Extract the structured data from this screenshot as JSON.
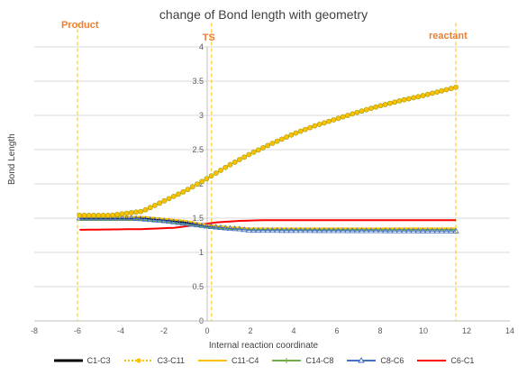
{
  "chart_data": {
    "type": "scatter",
    "title": "change of Bond length with geometry",
    "xlabel": "Internal reaction coordinate",
    "ylabel": "Bond Length",
    "xlim": [
      -8,
      14
    ],
    "ylim": [
      0,
      4
    ],
    "xticks": [
      -8,
      -6,
      -4,
      -2,
      0,
      2,
      4,
      6,
      8,
      10,
      12,
      14
    ],
    "yticks": [
      0,
      0.5,
      1,
      1.5,
      2,
      2.5,
      3,
      3.5,
      4
    ],
    "grid": "horizontal",
    "legend_position": "bottom",
    "x_range": [
      -5.9,
      11.5
    ],
    "series": [
      {
        "name": "C1-C3",
        "color": "#000000",
        "style": "line",
        "xk": [
          -5.9,
          -3,
          -1,
          0,
          1,
          2,
          11.5
        ],
        "yk": [
          1.5,
          1.5,
          1.44,
          1.38,
          1.35,
          1.34,
          1.34
        ]
      },
      {
        "name": "C3-C11",
        "color": "#FFC000",
        "style": "dotted-marker",
        "xk": [
          -5.9,
          -4.5,
          -3,
          -2,
          -1,
          0,
          1,
          2,
          3,
          4,
          5,
          6,
          7,
          8,
          9,
          10,
          11,
          11.5
        ],
        "yk": [
          1.54,
          1.54,
          1.6,
          1.75,
          1.9,
          2.08,
          2.27,
          2.44,
          2.59,
          2.73,
          2.85,
          2.95,
          3.05,
          3.14,
          3.22,
          3.29,
          3.37,
          3.41
        ]
      },
      {
        "name": "C11-C4",
        "color": "#FFC000",
        "style": "line",
        "xk": [
          -5.9,
          -3,
          -1,
          0,
          1,
          2,
          11.5
        ],
        "yk": [
          1.52,
          1.52,
          1.46,
          1.4,
          1.37,
          1.35,
          1.35
        ]
      },
      {
        "name": "C14-C8",
        "color": "#70AD47",
        "style": "line-marker",
        "xk": [
          -5.9,
          -3,
          -1,
          0,
          1,
          2,
          11.5
        ],
        "yk": [
          1.47,
          1.47,
          1.41,
          1.36,
          1.34,
          1.33,
          1.33
        ]
      },
      {
        "name": "C8-C6",
        "color": "#4472C4",
        "style": "triangle-marker",
        "xk": [
          -5.9,
          -3.5,
          -2,
          -1,
          0,
          1,
          1.5,
          2,
          11.5
        ],
        "yk": [
          1.5,
          1.5,
          1.46,
          1.42,
          1.38,
          1.35,
          1.34,
          1.32,
          1.31
        ]
      },
      {
        "name": "C6-C1",
        "color": "#FF0000",
        "style": "line",
        "xk": [
          -5.9,
          -3,
          -1.5,
          -0.5,
          0.5,
          1.5,
          2.5,
          11.5
        ],
        "yk": [
          1.33,
          1.34,
          1.36,
          1.4,
          1.44,
          1.46,
          1.47,
          1.47
        ]
      }
    ],
    "vertical_markers": [
      {
        "label": "Product",
        "x": -6.0
      },
      {
        "label": "TS",
        "x": 0.2
      },
      {
        "label": "reactant",
        "x": 11.5
      }
    ]
  }
}
